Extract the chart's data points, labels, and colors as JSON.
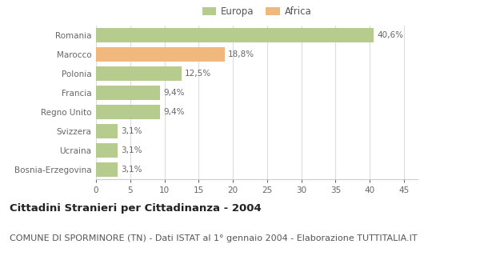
{
  "categories": [
    "Bosnia-Erzegovina",
    "Ucraina",
    "Svizzera",
    "Regno Unito",
    "Francia",
    "Polonia",
    "Marocco",
    "Romania"
  ],
  "values": [
    3.1,
    3.1,
    3.1,
    9.4,
    9.4,
    12.5,
    18.8,
    40.6
  ],
  "labels": [
    "3,1%",
    "3,1%",
    "3,1%",
    "9,4%",
    "9,4%",
    "12,5%",
    "18,8%",
    "40,6%"
  ],
  "colors": [
    "#b5cc8e",
    "#b5cc8e",
    "#b5cc8e",
    "#b5cc8e",
    "#b5cc8e",
    "#b5cc8e",
    "#f0b87c",
    "#b5cc8e"
  ],
  "legend_labels": [
    "Europa",
    "Africa"
  ],
  "legend_colors": [
    "#b5cc8e",
    "#f0b87c"
  ],
  "title_bold": "Cittadini Stranieri per Cittadinanza - 2004",
  "subtitle": "COMUNE DI SPORMINORE (TN) - Dati ISTAT al 1° gennaio 2004 - Elaborazione TUTTITALIA.IT",
  "xlim": [
    0,
    47
  ],
  "xticks": [
    0,
    5,
    10,
    15,
    20,
    25,
    30,
    35,
    40,
    45
  ],
  "background_color": "#ffffff",
  "bar_height": 0.72,
  "title_fontsize": 9.5,
  "subtitle_fontsize": 8,
  "label_fontsize": 7.5,
  "tick_fontsize": 7.5,
  "legend_fontsize": 8.5
}
